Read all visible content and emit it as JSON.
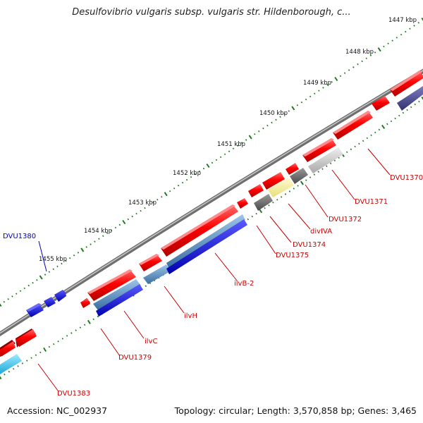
{
  "title": "Desulfovibrio vulgaris subsp. vulgaris str. Hildenborough, c...",
  "footer": {
    "accession": "Accession: NC_002937",
    "stats": "Topology: circular; Length: 3,570,858 bp; Genes: 3,465"
  },
  "colors": {
    "backbone": "#8a8a8a",
    "tick": "#1f7a1f",
    "gene_label": "#cc0000",
    "highlight_label": "#0000cc",
    "forward_gene": "#ff0000",
    "reverse_gene": "#0000ee"
  },
  "kbp_marks": [
    "1447 kbp",
    "1448 kbp",
    "1449 kbp",
    "1450 kbp",
    "1451 kbp",
    "1452 kbp",
    "1453 kbp",
    "1454 kbp",
    "1455 kbp"
  ],
  "gene_labels": [
    "DVU1370",
    "DVU1371",
    "DVU1372",
    "divIVA",
    "DVU1374",
    "DVU1375",
    "ilvB-2",
    "ilvH",
    "ilvC",
    "DVU1379",
    "DVU1380",
    "DVU1383"
  ]
}
